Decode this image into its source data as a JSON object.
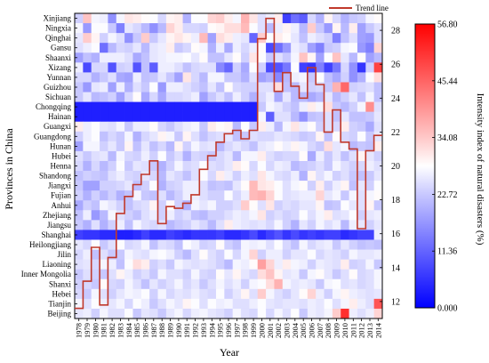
{
  "chart_data": {
    "type": "heatmap",
    "xlabel": "Year",
    "ylabel": "Provinces in China",
    "x": [
      1978,
      1979,
      1980,
      1981,
      1982,
      1983,
      1984,
      1985,
      1986,
      1987,
      1988,
      1989,
      1990,
      1991,
      1992,
      1993,
      1994,
      1995,
      1996,
      1997,
      1998,
      1999,
      2000,
      2001,
      2002,
      2003,
      2004,
      2005,
      2006,
      2007,
      2008,
      2009,
      2010,
      2011,
      2012,
      2013,
      2014
    ],
    "y": [
      "Xinjiang",
      "Ningxia",
      "Qinghai",
      "Gansu",
      "Shaanxi",
      "Xizang",
      "Yunnan",
      "Guizhou",
      "Sichuan",
      "Chongqing",
      "Hainan",
      "Guangxi",
      "Guangdong",
      "Hunan",
      "Hubei",
      "Henna",
      "Shandong",
      "Jiangxi",
      "Fujian",
      "Anhui",
      "Zhejiang",
      "Jiangsu",
      "Shanghai",
      "Heilongjiang",
      "Jilin",
      "Liaoning",
      "Inner Mongolia",
      "Shanxi",
      "Hebei",
      "Tianjin",
      "Beijing"
    ],
    "colorbar": {
      "label": "Intensity index of natural disasters (%)",
      "ticks": [
        "56.80",
        "45.44",
        "34.08",
        "22.72",
        "11.36",
        "0.000"
      ],
      "range": [
        0,
        56.8
      ],
      "low_color": "#0000ff",
      "mid_color": "#ffffff",
      "high_color": "#ff0000"
    },
    "right_axis": {
      "ticks": [
        "28",
        "26",
        "24",
        "22",
        "20",
        "18",
        "16",
        "14",
        "12"
      ],
      "range": [
        11,
        29
      ]
    },
    "legend": {
      "label": "Trend line",
      "position": "top-right",
      "color": "#c0392b"
    },
    "trend_line": [
      11.6,
      13.2,
      15.2,
      11.8,
      14.6,
      17.2,
      18.2,
      18.9,
      19.5,
      20.3,
      16.6,
      17.6,
      17.5,
      17.8,
      18.3,
      19.8,
      20.6,
      21.4,
      21.9,
      22.1,
      21.6,
      22.1,
      27.5,
      28.7,
      24.4,
      25.5,
      24.7,
      24.0,
      25.8,
      24.8,
      22.0,
      23.3,
      21.4,
      21.0,
      16.3,
      20.9,
      21.8
    ],
    "grid_values": [
      [
        22,
        36,
        27,
        26,
        14,
        27,
        32,
        31,
        29,
        28,
        23,
        30,
        31,
        18,
        28,
        28,
        34,
        35,
        31,
        27,
        38,
        32,
        24,
        26,
        31,
        5,
        10,
        8,
        23,
        18,
        30,
        23,
        18,
        21,
        22,
        27,
        29
      ],
      [
        27,
        15,
        28,
        28,
        21,
        12,
        25,
        23,
        19,
        14,
        19,
        34,
        31,
        23,
        23,
        22,
        29,
        30,
        33,
        33,
        37,
        28,
        24,
        19,
        26,
        30,
        26,
        19,
        35,
        21,
        15,
        30,
        19,
        31,
        16,
        21,
        24
      ],
      [
        25,
        35,
        30,
        22,
        27,
        24,
        14,
        21,
        35,
        21,
        25,
        30,
        32,
        30,
        26,
        37,
        16,
        33,
        31,
        26,
        25,
        9,
        35,
        28,
        31,
        29,
        25,
        20,
        26,
        24,
        22,
        12,
        20,
        24,
        16,
        15,
        24
      ],
      [
        24,
        26,
        28,
        10,
        19,
        23,
        22,
        25,
        19,
        25,
        26,
        31,
        21,
        23,
        29,
        27,
        18,
        26,
        17,
        26,
        23,
        26,
        29,
        6,
        10,
        15,
        26,
        24,
        16,
        12,
        21,
        22,
        27,
        28,
        15,
        12,
        34
      ],
      [
        16,
        20,
        18,
        26,
        26,
        26,
        24,
        17,
        20,
        25,
        26,
        27,
        27,
        28,
        25,
        29,
        20,
        20,
        25,
        29,
        22,
        32,
        28,
        21,
        24,
        21,
        27,
        36,
        30,
        16,
        28,
        36,
        25,
        19,
        29,
        16,
        19
      ],
      [
        26,
        6,
        23,
        23,
        7,
        22,
        23,
        7,
        20,
        8,
        26,
        26,
        24,
        20,
        23,
        24,
        24,
        13,
        9,
        22,
        17,
        28,
        22,
        6,
        7,
        11,
        28,
        5,
        4,
        12,
        5,
        11,
        23,
        14,
        4,
        22,
        50
      ],
      [
        23,
        23,
        18,
        21,
        24,
        17,
        16,
        26,
        20,
        21,
        25,
        21,
        16,
        32,
        23,
        19,
        27,
        27,
        21,
        21,
        18,
        24,
        16,
        18,
        13,
        19,
        26,
        27,
        21,
        28,
        20,
        17,
        22,
        14,
        18,
        28,
        33
      ],
      [
        21,
        15,
        25,
        26,
        16,
        26,
        18,
        24,
        21,
        28,
        15,
        26,
        26,
        24,
        22,
        20,
        25,
        20,
        29,
        23,
        22,
        22,
        24,
        24,
        33,
        20,
        19,
        25,
        22,
        23,
        21,
        38,
        46,
        22,
        23,
        24,
        20
      ],
      [
        21,
        25,
        19,
        20,
        22,
        16,
        23,
        29,
        17,
        23,
        17,
        23,
        23,
        24,
        26,
        16,
        21,
        24,
        20,
        26,
        22,
        18,
        23,
        26,
        17,
        25,
        19,
        19,
        17,
        19,
        25,
        19,
        22,
        25,
        20,
        27,
        20
      ],
      [
        2,
        2,
        2,
        2,
        2,
        2,
        2,
        2,
        2,
        2,
        2,
        2,
        2,
        2,
        2,
        2,
        2,
        2,
        2,
        2,
        2,
        2,
        21,
        27,
        25,
        22,
        20,
        26,
        31,
        27,
        33,
        21,
        19,
        22,
        27,
        42,
        24
      ],
      [
        2,
        2,
        2,
        2,
        2,
        2,
        2,
        2,
        2,
        2,
        2,
        2,
        2,
        2,
        2,
        2,
        2,
        2,
        2,
        2,
        2,
        2,
        27,
        8,
        24,
        24,
        19,
        14,
        20,
        21,
        24,
        20,
        25,
        20,
        20,
        21,
        25
      ],
      [
        31,
        26,
        28,
        25,
        24,
        27,
        21,
        26,
        26,
        29,
        23,
        21,
        24,
        26,
        27,
        21,
        31,
        29,
        30,
        19,
        28,
        21,
        31,
        26,
        19,
        27,
        32,
        26,
        29,
        22,
        24,
        23,
        31,
        22,
        21,
        17,
        24
      ],
      [
        22,
        26,
        28,
        20,
        23,
        21,
        27,
        18,
        23,
        25,
        30,
        27,
        21,
        30,
        24,
        20,
        23,
        24,
        25,
        20,
        21,
        24,
        23,
        23,
        25,
        24,
        23,
        21,
        22,
        30,
        20,
        29,
        23,
        22,
        28,
        21,
        25
      ],
      [
        16,
        27,
        27,
        22,
        25,
        21,
        30,
        20,
        25,
        20,
        23,
        19,
        30,
        22,
        27,
        24,
        25,
        19,
        23,
        25,
        23,
        20,
        25,
        26,
        29,
        26,
        30,
        27,
        23,
        21,
        33,
        25,
        27,
        19,
        21,
        20,
        31
      ],
      [
        24,
        21,
        24,
        25,
        19,
        27,
        23,
        22,
        26,
        22,
        28,
        21,
        24,
        18,
        23,
        22,
        21,
        23,
        25,
        19,
        27,
        27,
        31,
        24,
        22,
        23,
        23,
        29,
        17,
        26,
        21,
        25,
        20,
        24,
        30,
        25,
        22
      ],
      [
        23,
        18,
        23,
        19,
        22,
        28,
        21,
        25,
        24,
        21,
        18,
        22,
        27,
        23,
        24,
        28,
        24,
        23,
        25,
        31,
        29,
        23,
        28,
        23,
        26,
        25,
        19,
        21,
        22,
        24,
        21,
        27,
        24,
        22,
        23,
        26,
        24
      ],
      [
        20,
        22,
        21,
        20,
        24,
        26,
        23,
        22,
        25,
        23,
        19,
        25,
        23,
        20,
        24,
        28,
        23,
        31,
        26,
        22,
        26,
        24,
        32,
        27,
        24,
        23,
        26,
        18,
        30,
        24,
        27,
        22,
        24,
        21,
        20,
        21,
        25
      ],
      [
        21,
        16,
        16,
        22,
        22,
        23,
        25,
        20,
        22,
        28,
        18,
        22,
        23,
        26,
        26,
        24,
        20,
        21,
        20,
        25,
        29,
        37,
        32,
        31,
        28,
        24,
        27,
        29,
        22,
        31,
        22,
        26,
        30,
        20,
        25,
        22,
        28
      ],
      [
        22,
        18,
        22,
        19,
        22,
        18,
        20,
        27,
        21,
        20,
        24,
        19,
        22,
        26,
        26,
        24,
        22,
        22,
        28,
        23,
        26,
        37,
        38,
        34,
        28,
        24,
        25,
        26,
        26,
        34,
        25,
        27,
        21,
        27,
        24,
        27,
        29
      ],
      [
        17,
        22,
        20,
        27,
        25,
        22,
        20,
        23,
        24,
        30,
        22,
        29,
        22,
        18,
        27,
        25,
        27,
        22,
        22,
        24,
        35,
        29,
        24,
        32,
        22,
        24,
        23,
        25,
        25,
        30,
        20,
        21,
        28,
        25,
        24,
        30,
        21
      ],
      [
        20,
        26,
        15,
        19,
        27,
        24,
        22,
        20,
        24,
        26,
        22,
        26,
        22,
        24,
        20,
        19,
        22,
        22,
        24,
        26,
        25,
        27,
        32,
        22,
        24,
        22,
        23,
        28,
        24,
        27,
        31,
        24,
        25,
        28,
        22,
        25,
        26
      ],
      [
        21,
        18,
        24,
        18,
        22,
        26,
        20,
        27,
        24,
        23,
        24,
        19,
        21,
        22,
        25,
        23,
        19,
        24,
        31,
        26,
        25,
        24,
        25,
        23,
        27,
        22,
        18,
        25,
        22,
        27,
        24,
        26,
        19,
        26,
        25,
        22,
        25
      ],
      [
        5,
        4,
        4,
        3,
        3,
        2,
        2,
        3,
        5,
        3,
        3,
        5,
        4,
        3,
        4,
        4,
        4,
        5,
        3,
        3,
        4,
        6,
        3,
        5,
        7,
        4,
        6,
        4,
        5,
        4,
        5,
        5,
        3,
        4,
        5,
        5,
        26
      ],
      [
        25,
        23,
        28,
        21,
        24,
        28,
        23,
        24,
        27,
        20,
        24,
        23,
        20,
        28,
        26,
        22,
        23,
        29,
        22,
        20,
        27,
        26,
        27,
        24,
        28,
        23,
        20,
        27,
        23,
        25,
        26,
        21,
        25,
        22,
        20,
        21,
        20
      ],
      [
        23,
        26,
        20,
        24,
        21,
        21,
        27,
        25,
        24,
        27,
        28,
        26,
        22,
        19,
        24,
        29,
        24,
        22,
        28,
        23,
        27,
        34,
        22,
        26,
        26,
        22,
        25,
        25,
        28,
        23,
        25,
        24,
        22,
        27,
        25,
        25,
        26
      ],
      [
        24,
        25,
        23,
        27,
        26,
        20,
        28,
        33,
        31,
        22,
        24,
        21,
        27,
        25,
        24,
        25,
        24,
        22,
        19,
        27,
        26,
        29,
        40,
        34,
        26,
        31,
        27,
        26,
        22,
        26,
        25,
        24,
        31,
        22,
        23,
        27,
        21
      ],
      [
        21,
        24,
        22,
        21,
        24,
        30,
        26,
        22,
        24,
        21,
        27,
        24,
        24,
        22,
        27,
        23,
        22,
        29,
        25,
        30,
        25,
        23,
        33,
        36,
        30,
        25,
        26,
        21,
        27,
        29,
        25,
        21,
        24,
        29,
        23,
        24,
        27
      ],
      [
        22,
        23,
        21,
        29,
        23,
        22,
        27,
        24,
        20,
        25,
        22,
        24,
        27,
        23,
        25,
        21,
        24,
        27,
        24,
        26,
        22,
        27,
        28,
        33,
        38,
        27,
        25,
        26,
        25,
        21,
        27,
        28,
        24,
        25,
        23,
        24,
        27
      ],
      [
        23,
        21,
        27,
        24,
        22,
        25,
        27,
        26,
        28,
        22,
        27,
        23,
        25,
        24,
        26,
        24,
        23,
        28,
        22,
        25,
        30,
        24,
        35,
        27,
        24,
        22,
        25,
        29,
        34,
        26,
        22,
        27,
        30,
        26,
        25,
        24,
        25
      ],
      [
        27,
        24,
        28,
        26,
        25,
        27,
        23,
        28,
        26,
        21,
        24,
        27,
        25,
        30,
        28,
        24,
        28,
        26,
        27,
        24,
        24,
        26,
        28,
        25,
        24,
        25,
        25,
        24,
        26,
        25,
        28,
        24,
        27,
        31,
        26,
        24,
        48
      ],
      [
        25,
        26,
        22,
        27,
        24,
        24,
        28,
        21,
        25,
        24,
        21,
        25,
        27,
        23,
        26,
        27,
        25,
        24,
        22,
        27,
        24,
        23,
        28,
        23,
        27,
        24,
        28,
        21,
        26,
        25,
        27,
        35,
        52,
        26,
        24,
        26,
        34
      ]
    ]
  }
}
